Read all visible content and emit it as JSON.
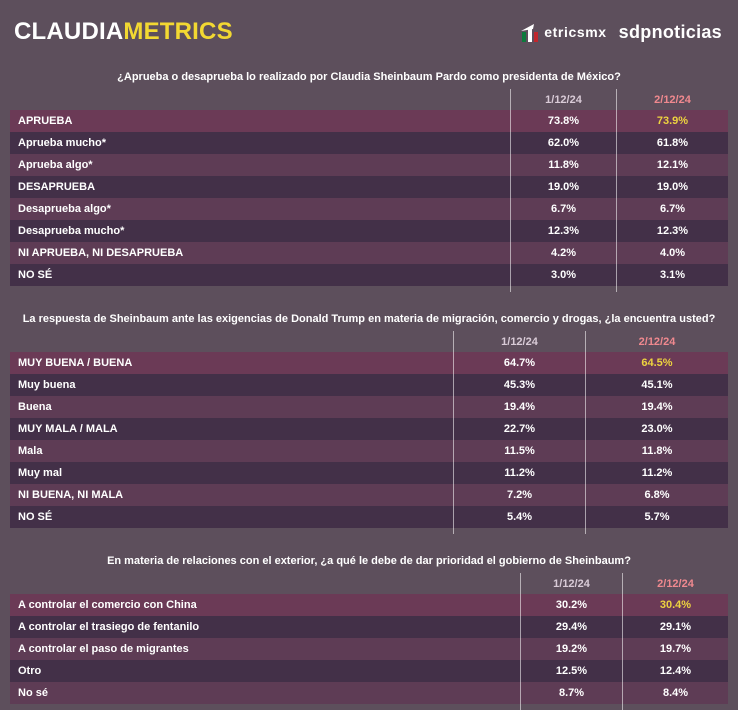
{
  "header": {
    "brand_claudia": "CLAUDIA",
    "brand_metrics": "METRICS",
    "metricsmx_label": "etricsmx",
    "sdpnoticias_label": "sdpnoticias"
  },
  "columns": [
    "1/12/24",
    "2/12/24"
  ],
  "colors": {
    "page_background": "#5d4f5c",
    "row_dark": "#433048",
    "row_mauve": "#5e3c55",
    "row_highlight": "#6b3a56",
    "brand_yellow": "#f2d832",
    "value_yellow": "#edd33f",
    "column_current_pink": "#f0898f",
    "column_prev_gray": "#d9cbd7",
    "flag_green": "#0e7a3d",
    "flag_red": "#c0272d"
  },
  "tables": [
    {
      "title": "¿Aprueba o desaprueba lo realizado por Claudia Sheinbaum Pardo como presidenta de México?",
      "rows": [
        {
          "label": "APRUEBA",
          "v1": "73.8%",
          "v2": "73.9%",
          "highlight": true,
          "v2_yellow": true
        },
        {
          "label": "Aprueba mucho*",
          "v1": "62.0%",
          "v2": "61.8%"
        },
        {
          "label": "Aprueba algo*",
          "v1": "11.8%",
          "v2": "12.1%"
        },
        {
          "label": "DESAPRUEBA",
          "v1": "19.0%",
          "v2": "19.0%"
        },
        {
          "label": "Desaprueba algo*",
          "v1": "6.7%",
          "v2": "6.7%"
        },
        {
          "label": "Desaprueba mucho*",
          "v1": "12.3%",
          "v2": "12.3%"
        },
        {
          "label": "NI APRUEBA, NI DESAPRUEBA",
          "v1": "4.2%",
          "v2": "4.0%"
        },
        {
          "label": "NO SÉ",
          "v1": "3.0%",
          "v2": "3.1%"
        }
      ]
    },
    {
      "title": "La respuesta de Sheinbaum ante las exigencias de Donald Trump en materia de migración, comercio y drogas, ¿la encuentra usted?",
      "rows": [
        {
          "label": "MUY BUENA / BUENA",
          "v1": "64.7%",
          "v2": "64.5%",
          "highlight": true,
          "v2_yellow": true
        },
        {
          "label": "Muy buena",
          "v1": "45.3%",
          "v2": "45.1%"
        },
        {
          "label": "Buena",
          "v1": "19.4%",
          "v2": "19.4%"
        },
        {
          "label": "MUY MALA / MALA",
          "v1": "22.7%",
          "v2": "23.0%"
        },
        {
          "label": "Mala",
          "v1": "11.5%",
          "v2": "11.8%"
        },
        {
          "label": "Muy mal",
          "v1": "11.2%",
          "v2": "11.2%"
        },
        {
          "label": "NI BUENA, NI MALA",
          "v1": "7.2%",
          "v2": "6.8%"
        },
        {
          "label": "NO SÉ",
          "v1": "5.4%",
          "v2": "5.7%"
        }
      ]
    },
    {
      "title": "En materia de relaciones con el exterior, ¿a qué le debe de dar prioridad el gobierno de Sheinbaum?",
      "rows": [
        {
          "label": "A controlar el comercio con China",
          "v1": "30.2%",
          "v2": "30.4%",
          "highlight": true,
          "v2_yellow": true
        },
        {
          "label": "A controlar el trasiego de fentanilo",
          "v1": "29.4%",
          "v2": "29.1%"
        },
        {
          "label": "A controlar el paso de migrantes",
          "v1": "19.2%",
          "v2": "19.7%"
        },
        {
          "label": "Otro",
          "v1": "12.5%",
          "v2": "12.4%"
        },
        {
          "label": "No sé",
          "v1": "8.7%",
          "v2": "8.4%"
        }
      ]
    }
  ],
  "chart_data": [
    {
      "type": "table",
      "title": "¿Aprueba o desaprueba lo realizado por Claudia Sheinbaum Pardo como presidenta de México?",
      "categories": [
        "APRUEBA",
        "Aprueba mucho*",
        "Aprueba algo*",
        "DESAPRUEBA",
        "Desaprueba algo*",
        "Desaprueba mucho*",
        "NI APRUEBA, NI DESAPRUEBA",
        "NO SÉ"
      ],
      "series": [
        {
          "name": "1/12/24",
          "values": [
            73.8,
            62.0,
            11.8,
            19.0,
            6.7,
            12.3,
            4.2,
            3.0
          ]
        },
        {
          "name": "2/12/24",
          "values": [
            73.9,
            61.8,
            12.1,
            19.0,
            6.7,
            12.3,
            4.0,
            3.1
          ]
        }
      ],
      "unit": "%"
    },
    {
      "type": "table",
      "title": "La respuesta de Sheinbaum ante las exigencias de Donald Trump en materia de migración, comercio y drogas, ¿la encuentra usted?",
      "categories": [
        "MUY BUENA / BUENA",
        "Muy buena",
        "Buena",
        "MUY MALA / MALA",
        "Mala",
        "Muy mal",
        "NI BUENA, NI MALA",
        "NO SÉ"
      ],
      "series": [
        {
          "name": "1/12/24",
          "values": [
            64.7,
            45.3,
            19.4,
            22.7,
            11.5,
            11.2,
            7.2,
            5.4
          ]
        },
        {
          "name": "2/12/24",
          "values": [
            64.5,
            45.1,
            19.4,
            23.0,
            11.8,
            11.2,
            6.8,
            5.7
          ]
        }
      ],
      "unit": "%"
    },
    {
      "type": "table",
      "title": "En materia de relaciones con el exterior, ¿a qué le debe de dar prioridad el gobierno de Sheinbaum?",
      "categories": [
        "A controlar el comercio con China",
        "A controlar el trasiego de fentanilo",
        "A controlar el paso de migrantes",
        "Otro",
        "No sé"
      ],
      "series": [
        {
          "name": "1/12/24",
          "values": [
            30.2,
            29.4,
            19.2,
            12.5,
            8.7
          ]
        },
        {
          "name": "2/12/24",
          "values": [
            30.4,
            29.1,
            19.7,
            12.4,
            8.4
          ]
        }
      ],
      "unit": "%"
    }
  ]
}
